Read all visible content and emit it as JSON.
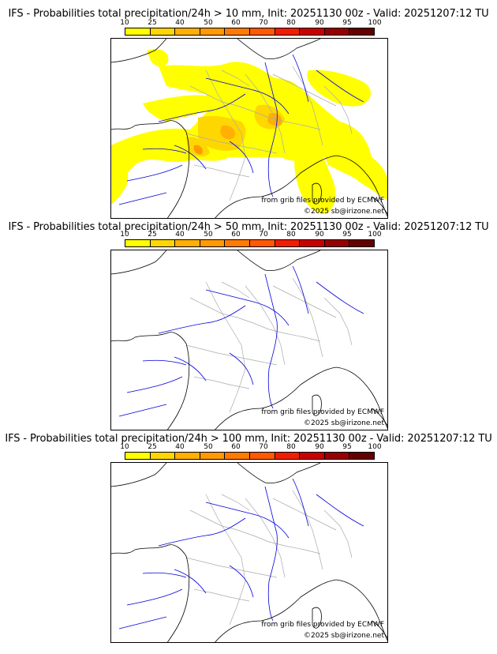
{
  "panels": [
    {
      "title": "IFS - Probabilities total precipitation/24h > 10 mm, Init: 20251130 00z - Valid: 20251207:12 TU",
      "threshold_mm": 10,
      "has_precip": true
    },
    {
      "title": "IFS - Probabilities total precipitation/24h > 50 mm, Init: 20251130 00z - Valid: 20251207:12 TU",
      "threshold_mm": 50,
      "has_precip": false
    },
    {
      "title": "IFS - Probabilities total precipitation/24h > 100 mm, Init: 20251130 00z - Valid: 20251207:12 TU",
      "threshold_mm": 100,
      "has_precip": false
    }
  ],
  "colorscale": {
    "labels": [
      "10",
      "25",
      "40",
      "50",
      "60",
      "70",
      "80",
      "90",
      "95",
      "100"
    ],
    "colors": [
      "#ffff00",
      "#ffd700",
      "#ffb000",
      "#ff9a00",
      "#ff7b00",
      "#ff5a00",
      "#f01e00",
      "#c80000",
      "#960000",
      "#640000"
    ]
  },
  "credits": {
    "source": "from grib files provided by ECMWF",
    "copyright": "©2025 sb@irizone.net"
  },
  "map_colors": {
    "coast": "#000000",
    "rivers": "#0000dd",
    "borders": "#aaaaaa",
    "precip_low": "#ffff00",
    "precip_mid": "#ffd700",
    "precip_high": "#ffb000",
    "precip_peak": "#ff9a00"
  }
}
